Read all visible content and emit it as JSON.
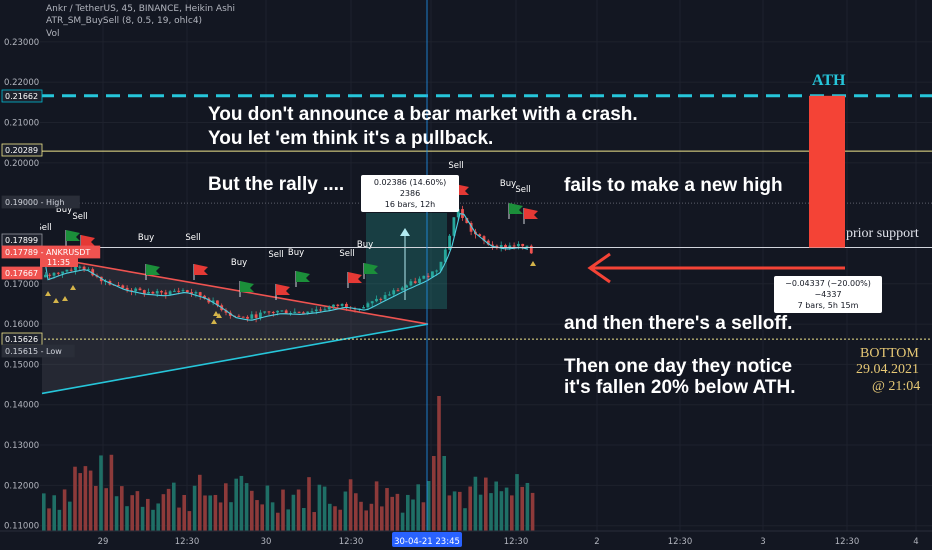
{
  "header": {
    "symbol_line": "Ankr / TetherUS, 45, BINANCE, Heikin Ashi",
    "indicator_line": "ATR_SM_BuySell (8, 0.5, 19, ohlc4)",
    "vol_line": "Vol"
  },
  "price_axis": {
    "ticks": [
      {
        "price": 0.23,
        "label": "0.23000"
      },
      {
        "price": 0.22,
        "label": "0.22000"
      },
      {
        "price": 0.21,
        "label": "0.21000"
      },
      {
        "price": 0.2,
        "label": "0.20000"
      },
      {
        "price": 0.17,
        "label": "0.17000"
      },
      {
        "price": 0.16,
        "label": "0.16000"
      },
      {
        "price": 0.15,
        "label": "0.15000"
      },
      {
        "price": 0.14,
        "label": "0.14000"
      },
      {
        "price": 0.13,
        "label": "0.13000"
      },
      {
        "price": 0.12,
        "label": "0.12000"
      },
      {
        "price": 0.11,
        "label": "0.11000"
      }
    ],
    "badges": [
      {
        "price": 0.21662,
        "label": "0.21662",
        "bg": "#1e222d",
        "fg": "#ffffff",
        "border": "#00bcd4"
      },
      {
        "price": 0.20289,
        "label": "0.20289",
        "bg": "#1e222d",
        "fg": "#ffffff",
        "border": "#f0e68c"
      },
      {
        "price": 0.19,
        "label": "0.19000 - High",
        "bg": "#2a2e39",
        "fg": "#d1d4dc",
        "border": "#2a2e39"
      },
      {
        "price": 0.17899,
        "label": "0.17899",
        "bg": "#1e222d",
        "fg": "#ffffff",
        "border": "#9598a1"
      },
      {
        "price": 0.17789,
        "label": "0.17789 - ANKRUSDT",
        "bg": "#ef5350",
        "fg": "#ffffff",
        "border": "#ef5350"
      },
      {
        "price": 0.17667,
        "label": "0.17667",
        "bg": "#ef5350",
        "fg": "#ffffff",
        "border": "#ef5350"
      },
      {
        "price": 0.15626,
        "label": "0.15626",
        "bg": "#1e222d",
        "fg": "#ffffff",
        "border": "#f0e68c"
      },
      {
        "price": 0.15615,
        "label": "0.15615 - Low",
        "bg": "#2a2e39",
        "fg": "#d1d4dc",
        "border": "#2a2e39"
      }
    ],
    "countdown": "11:35"
  },
  "time_axis": {
    "labels": [
      "29",
      "12:30",
      "30",
      "12:30",
      "12:30",
      "2",
      "12:30",
      "3",
      "12:30",
      "4"
    ],
    "crosshair_label": "30-04-21  23:45"
  },
  "levels": {
    "ath_price": 0.21662,
    "prior_support_price": 0.20289,
    "high_price": 0.19,
    "current_price": 0.17899,
    "low_line_price": 0.15626
  },
  "signals": [
    {
      "text": "Sell",
      "type": "sell"
    },
    {
      "text": "Buy",
      "type": "buy"
    },
    {
      "text": "Sell",
      "type": "sell"
    },
    {
      "text": "Buy",
      "type": "buy"
    },
    {
      "text": "Sell",
      "type": "sell"
    },
    {
      "text": "Buy",
      "type": "buy"
    },
    {
      "text": "Sell",
      "type": "sell"
    },
    {
      "text": "Buy",
      "type": "buy"
    },
    {
      "text": "Sell",
      "type": "sell"
    },
    {
      "text": "Buy",
      "type": "buy"
    },
    {
      "text": "Sell",
      "type": "sell"
    },
    {
      "text": "Buy",
      "type": "buy"
    },
    {
      "text": "Sell",
      "type": "sell"
    }
  ],
  "measure_up": {
    "line1": "0.02386 (14.60%) 2386",
    "line2": "16 bars, 12h"
  },
  "measure_down": {
    "line1": "−0.04337 (−20.00%) −4337",
    "line2": "7 bars, 5h 15m"
  },
  "annotations": {
    "line1": "You don't announce a bear market with a crash.",
    "line2": "You let 'em think it's a pullback.",
    "rally": "But the rally ....",
    "fails": "fails to make a new high",
    "selloff": "and then there's a selloff.",
    "notice1": "Then one day they notice",
    "notice2": "it's fallen 20% below ATH.",
    "ath_label": "ATH",
    "prior_support": "prior support",
    "bottom": "BOTTOM",
    "date": "29.04.2021",
    "time": "@ 21:04"
  },
  "colors": {
    "background": "#131722",
    "bull": "#26a69a",
    "bear": "#ef5350",
    "ath_line": "#26c6da",
    "support_line": "#f0e68c",
    "arrow": "#f44336",
    "trend_red": "#ef5350",
    "trend_cyan": "#26c6da",
    "serif_gold": "#e6c875"
  }
}
